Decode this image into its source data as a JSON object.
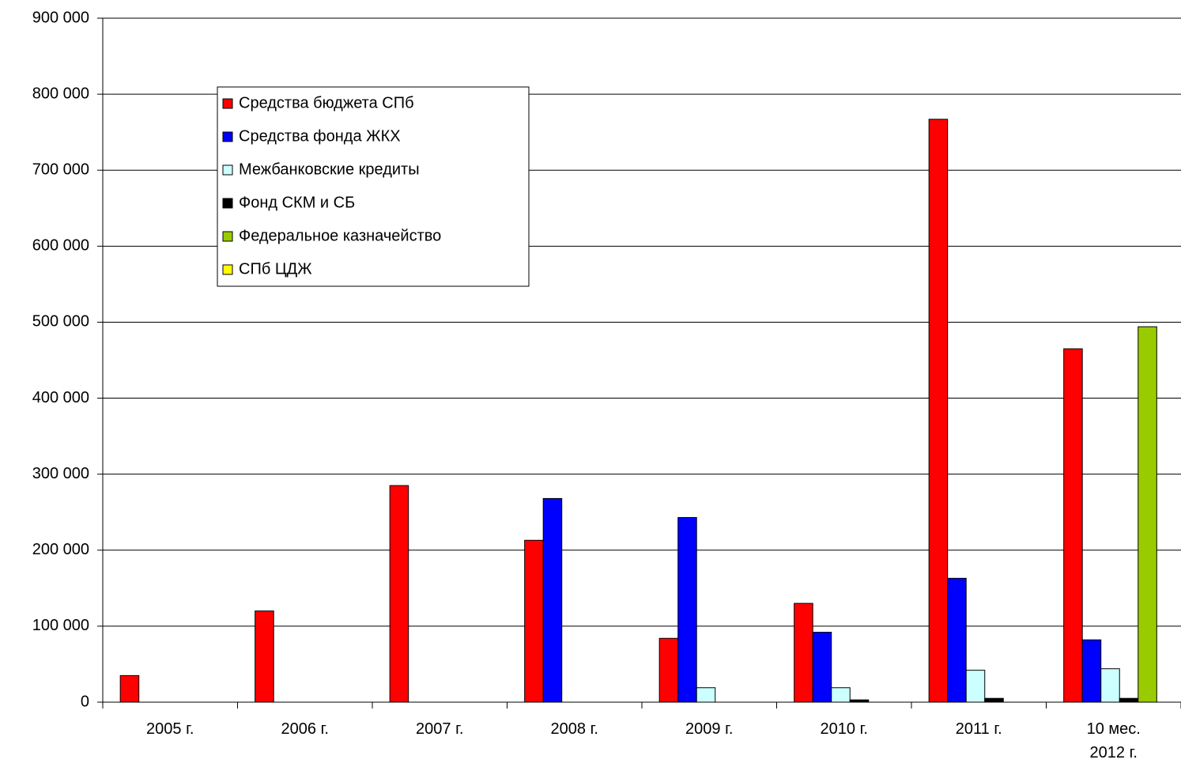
{
  "chart_data": {
    "type": "bar",
    "categories": [
      "2005 г.",
      "2006 г.",
      "2007 г.",
      "2008 г.",
      "2009 г.",
      "2010 г.",
      "2011 г.",
      "10 мес.\n2012 г."
    ],
    "series": [
      {
        "name": "Средства бюджета СПб",
        "color": "#ff0000",
        "values": [
          35000,
          120000,
          285000,
          213000,
          84000,
          130000,
          767000,
          465000
        ]
      },
      {
        "name": "Средства фонда ЖКХ",
        "color": "#0000ff",
        "values": [
          null,
          null,
          null,
          268000,
          243000,
          92000,
          163000,
          82000
        ]
      },
      {
        "name": "Межбанковские кредиты",
        "color": "#ccffff",
        "values": [
          null,
          null,
          null,
          null,
          19000,
          19000,
          42000,
          44000
        ]
      },
      {
        "name": "Фонд СКМ и СБ",
        "color": "#000000",
        "values": [
          null,
          null,
          null,
          null,
          null,
          3000,
          5000,
          5000
        ]
      },
      {
        "name": "Федеральное казначейство",
        "color": "#99cc00",
        "values": [
          null,
          null,
          null,
          null,
          null,
          null,
          null,
          494000
        ]
      },
      {
        "name": "СПб ЦДЖ",
        "color": "#ffff00",
        "values": [
          null,
          null,
          null,
          null,
          null,
          null,
          null,
          null
        ]
      }
    ],
    "ylim": [
      0,
      900000
    ],
    "yticks": [
      {
        "value": 0,
        "label": "0"
      },
      {
        "value": 100000,
        "label": "100 000"
      },
      {
        "value": 200000,
        "label": "200 000"
      },
      {
        "value": 300000,
        "label": "300 000"
      },
      {
        "value": 400000,
        "label": "400 000"
      },
      {
        "value": 500000,
        "label": "500 000"
      },
      {
        "value": 600000,
        "label": "600 000"
      },
      {
        "value": 700000,
        "label": "700 000"
      },
      {
        "value": 800000,
        "label": "800 000"
      },
      {
        "value": 900000,
        "label": "900 000"
      }
    ],
    "grid": true
  }
}
